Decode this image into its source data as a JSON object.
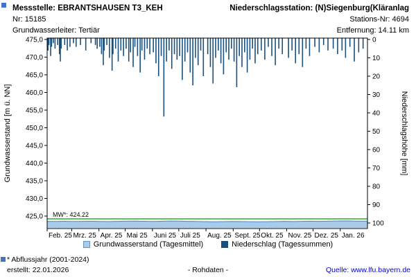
{
  "header": {
    "left": {
      "title": "Messstelle: EBRANTSHAUSEN T3_KEH",
      "line2": "Nr: 15185",
      "line3": "Grundwasserleiter: Tertiär"
    },
    "right": {
      "title": "Niederschlagsstation: (N)Siegenburg(Kläranlag",
      "line2": "Stations-Nr: 4694",
      "line3": "Entfernung: 14.11 km"
    }
  },
  "legend": [
    {
      "label": "Grundwasserstand (Tagesmittel)",
      "color": "#aacbe8",
      "border": "#5e94cc"
    },
    {
      "label": "Niederschlag (Tagessummen)",
      "color": "#17507e",
      "border": "#17507e"
    }
  ],
  "footer": {
    "note": "* Abflussjahr (2001-2024)",
    "created": "erstellt:  22.01.2026",
    "center": "- Rohdaten -",
    "source": "Quelle: www.lfu.bayern.de"
  },
  "chart_data": {
    "type": "bar+line",
    "title": "",
    "x_range_days": 365,
    "x_ticks": [
      "Feb. 25",
      "Mrz. 25",
      "Apr. 25",
      "Mai 25",
      "Juni 25",
      "Juli 25",
      "Aug. 25",
      "Sept. 25",
      "Okt. 25",
      "Nov. 25",
      "Dez. 25",
      "Jan. 26"
    ],
    "month_starts": [
      0,
      28,
      59,
      89,
      120,
      150,
      181,
      212,
      242,
      273,
      303,
      334
    ],
    "left_axis": {
      "label": "Grundwasserstand [m ü. NN]",
      "min": 425,
      "max": 475,
      "step": 5,
      "tick_values": [
        475,
        470,
        465,
        460,
        455,
        450,
        445,
        440,
        435,
        430,
        425
      ],
      "tick_labels": [
        "475,0",
        "470,0",
        "465,0",
        "460,0",
        "455,0",
        "450,0",
        "445,0",
        "440,0",
        "435,0",
        "430,0",
        "425,0"
      ]
    },
    "right_axis": {
      "label": "Niederschlagshöhe [mm]",
      "min": 0,
      "max": 100,
      "step": 10,
      "inverted": true,
      "tick_values": [
        0,
        10,
        20,
        30,
        40,
        50,
        60,
        70,
        80,
        90,
        100
      ],
      "tick_labels": [
        "0",
        "10",
        "20",
        "30",
        "40",
        "50",
        "60",
        "70",
        "80",
        "90",
        "100"
      ]
    },
    "mean_line": {
      "label": "MW*: 424.22",
      "value": 424.22,
      "color": "#00a000"
    },
    "series": [
      {
        "name": "Grundwasserstand (Tagesmittel)",
        "axis": "left",
        "type": "area-line",
        "color": "#aacbe8",
        "line_color": "#4a86c8",
        "x_days": [
          0,
          10,
          20,
          30,
          40,
          50,
          60,
          70,
          80,
          90,
          100,
          110,
          120,
          130,
          140,
          150,
          160,
          170,
          180,
          190,
          200,
          210,
          220,
          230,
          240,
          250,
          260,
          270,
          280,
          290,
          300,
          310,
          320,
          330,
          340,
          350,
          360,
          365
        ],
        "values": [
          423.5,
          423.48,
          423.52,
          423.47,
          423.5,
          423.53,
          423.49,
          423.46,
          423.5,
          423.54,
          423.57,
          423.52,
          423.49,
          423.53,
          423.6,
          423.56,
          423.51,
          423.47,
          423.43,
          423.4,
          423.44,
          423.49,
          423.45,
          423.41,
          423.37,
          423.41,
          423.46,
          423.5,
          423.46,
          423.5,
          423.55,
          423.51,
          423.55,
          423.6,
          423.63,
          423.58,
          423.55,
          423.56
        ]
      },
      {
        "name": "Niederschlag (Tagessummen)",
        "axis": "right",
        "type": "bar",
        "color": "#17507e",
        "points": [
          [
            1,
            6
          ],
          [
            2,
            3
          ],
          [
            4,
            9
          ],
          [
            5,
            4
          ],
          [
            7,
            2
          ],
          [
            9,
            5
          ],
          [
            12,
            3
          ],
          [
            14,
            8
          ],
          [
            15,
            12
          ],
          [
            16,
            5
          ],
          [
            20,
            3
          ],
          [
            23,
            6
          ],
          [
            26,
            4
          ],
          [
            30,
            2
          ],
          [
            33,
            4
          ],
          [
            38,
            3
          ],
          [
            44,
            6
          ],
          [
            50,
            2
          ],
          [
            55,
            3
          ],
          [
            57,
            5
          ],
          [
            60,
            4
          ],
          [
            62,
            8
          ],
          [
            64,
            14
          ],
          [
            65,
            6
          ],
          [
            68,
            3
          ],
          [
            71,
            10
          ],
          [
            74,
            17
          ],
          [
            75,
            8
          ],
          [
            78,
            5
          ],
          [
            81,
            12
          ],
          [
            84,
            6
          ],
          [
            87,
            9
          ],
          [
            90,
            5
          ],
          [
            93,
            12
          ],
          [
            95,
            7
          ],
          [
            98,
            15
          ],
          [
            100,
            4
          ],
          [
            103,
            9
          ],
          [
            106,
            18
          ],
          [
            108,
            6
          ],
          [
            111,
            11
          ],
          [
            114,
            5
          ],
          [
            117,
            8
          ],
          [
            121,
            7
          ],
          [
            124,
            13
          ],
          [
            127,
            20
          ],
          [
            130,
            9
          ],
          [
            133,
            42
          ],
          [
            136,
            12
          ],
          [
            139,
            6
          ],
          [
            142,
            16
          ],
          [
            145,
            8
          ],
          [
            148,
            11
          ],
          [
            151,
            9
          ],
          [
            154,
            22
          ],
          [
            157,
            12
          ],
          [
            160,
            7
          ],
          [
            163,
            18
          ],
          [
            166,
            25
          ],
          [
            169,
            10
          ],
          [
            172,
            14
          ],
          [
            175,
            6
          ],
          [
            178,
            20
          ],
          [
            183,
            8
          ],
          [
            186,
            15
          ],
          [
            189,
            24
          ],
          [
            192,
            10
          ],
          [
            195,
            6
          ],
          [
            198,
            13
          ],
          [
            201,
            19
          ],
          [
            204,
            7
          ],
          [
            207,
            11
          ],
          [
            210,
            5
          ],
          [
            213,
            12
          ],
          [
            216,
            26
          ],
          [
            219,
            9
          ],
          [
            222,
            15
          ],
          [
            225,
            7
          ],
          [
            228,
            18
          ],
          [
            231,
            11
          ],
          [
            234,
            5
          ],
          [
            237,
            13
          ],
          [
            240,
            8
          ],
          [
            244,
            6
          ],
          [
            248,
            11
          ],
          [
            252,
            4
          ],
          [
            256,
            9
          ],
          [
            260,
            14
          ],
          [
            264,
            5
          ],
          [
            268,
            8
          ],
          [
            275,
            10
          ],
          [
            279,
            6
          ],
          [
            283,
            13
          ],
          [
            287,
            8
          ],
          [
            291,
            15
          ],
          [
            295,
            5
          ],
          [
            299,
            9
          ],
          [
            305,
            4
          ],
          [
            310,
            7
          ],
          [
            315,
            3
          ],
          [
            320,
            6
          ],
          [
            326,
            5
          ],
          [
            331,
            8
          ],
          [
            336,
            6
          ],
          [
            340,
            10
          ],
          [
            345,
            4
          ],
          [
            350,
            12
          ],
          [
            355,
            7
          ],
          [
            360,
            5
          ]
        ]
      }
    ]
  }
}
